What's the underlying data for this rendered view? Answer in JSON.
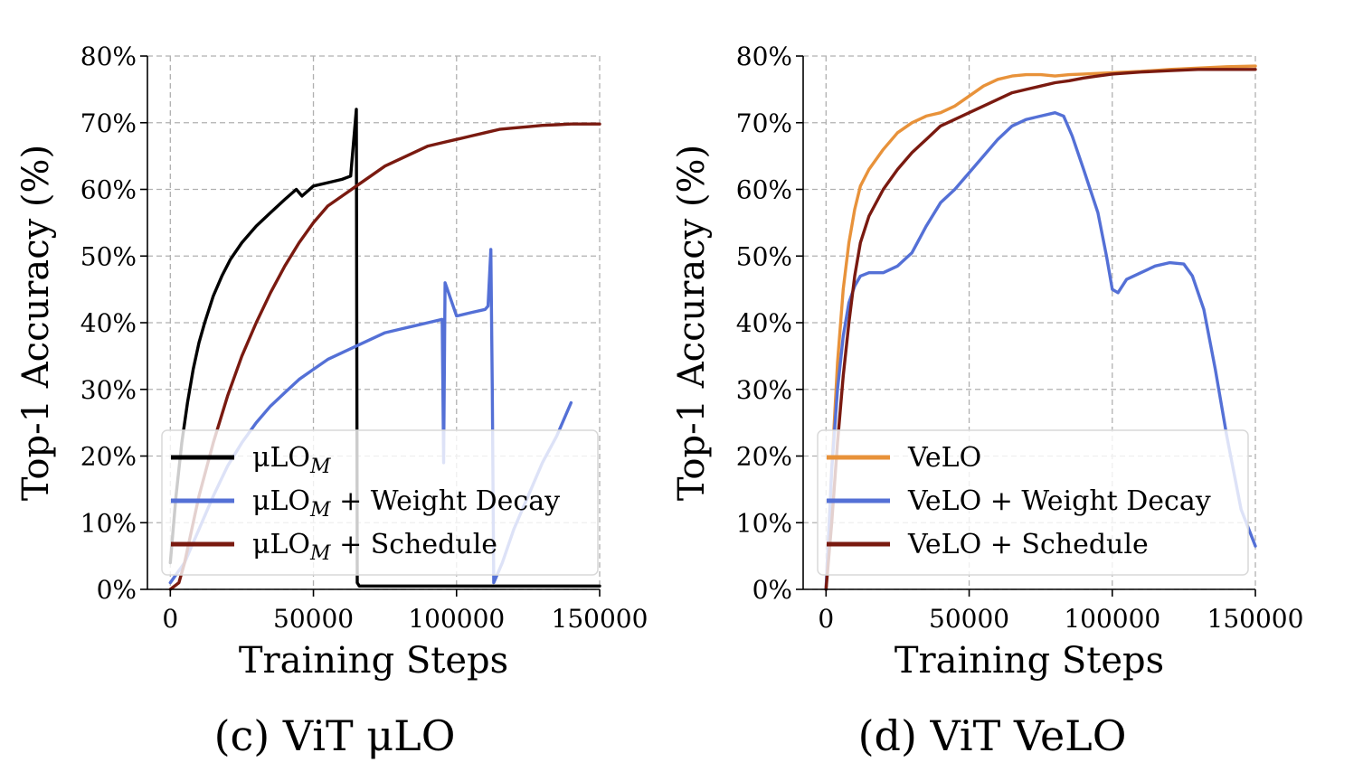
{
  "chart_data": [
    {
      "type": "line",
      "caption": "(c) ViT μLO",
      "xlabel": "Training Steps",
      "ylabel": "Top-1 Accuracy (%)",
      "xlim": [
        -8000,
        150000
      ],
      "ylim": [
        0,
        80
      ],
      "xticks": [
        0,
        50000,
        100000,
        150000
      ],
      "yticks": [
        0,
        10,
        20,
        30,
        40,
        50,
        60,
        70,
        80
      ],
      "ytick_suffix": "%",
      "grid": true,
      "legend_position": "lower-left",
      "series": [
        {
          "name": "μLO_M",
          "color": "#000000",
          "x": [
            0,
            2000,
            4000,
            6000,
            8000,
            10000,
            12000,
            15000,
            18000,
            21000,
            25000,
            30000,
            35000,
            40000,
            44000,
            46000,
            50000,
            55000,
            60000,
            63000,
            65000,
            65300,
            66000,
            70000,
            80000,
            100000,
            120000,
            150000
          ],
          "y": [
            4,
            14,
            22,
            28,
            33,
            37,
            40,
            44,
            47,
            49.5,
            52,
            54.5,
            56.5,
            58.5,
            60,
            59,
            60.5,
            61,
            61.5,
            62,
            72,
            1,
            0.5,
            0.5,
            0.5,
            0.5,
            0.5,
            0.5
          ]
        },
        {
          "name": "μLO_M + Weight Decay",
          "color": "#5470d6",
          "x": [
            0,
            5000,
            10000,
            15000,
            20000,
            25000,
            30000,
            35000,
            40000,
            45000,
            50000,
            55000,
            60000,
            65000,
            70000,
            75000,
            80000,
            85000,
            90000,
            95000,
            95500,
            96000,
            100000,
            105000,
            110000,
            111000,
            112000,
            112500,
            113000,
            116000,
            120000,
            125000,
            130000,
            135000,
            140000
          ],
          "y": [
            1,
            4,
            9,
            14,
            18.5,
            22,
            25,
            27.5,
            29.5,
            31.5,
            33,
            34.5,
            35.5,
            36.5,
            37.5,
            38.5,
            39,
            39.5,
            40,
            40.5,
            19,
            46,
            41,
            41.5,
            42,
            42.5,
            51,
            30,
            1,
            4,
            9,
            14,
            19,
            23,
            28
          ]
        },
        {
          "name": "μLO_M + Schedule",
          "color": "#7a1a10",
          "x": [
            0,
            3000,
            5000,
            8000,
            10000,
            15000,
            20000,
            25000,
            30000,
            35000,
            40000,
            45000,
            50000,
            55000,
            60000,
            65000,
            70000,
            75000,
            80000,
            85000,
            90000,
            95000,
            100000,
            105000,
            110000,
            115000,
            120000,
            125000,
            130000,
            135000,
            140000,
            145000,
            150000
          ],
          "y": [
            0,
            1,
            4,
            10,
            14,
            22,
            29,
            35,
            40,
            44.5,
            48.5,
            52,
            55,
            57.5,
            59,
            60.5,
            62,
            63.5,
            64.5,
            65.5,
            66.5,
            67,
            67.5,
            68,
            68.5,
            69,
            69.2,
            69.4,
            69.6,
            69.7,
            69.8,
            69.8,
            69.8
          ]
        }
      ]
    },
    {
      "type": "line",
      "caption": "(d) ViT VeLO",
      "xlabel": "Training Steps",
      "ylabel": "Top-1 Accuracy (%)",
      "xlim": [
        -8000,
        150000
      ],
      "ylim": [
        0,
        80
      ],
      "xticks": [
        0,
        50000,
        100000,
        150000
      ],
      "yticks": [
        0,
        10,
        20,
        30,
        40,
        50,
        60,
        70,
        80
      ],
      "ytick_suffix": "%",
      "grid": true,
      "legend_position": "lower-left",
      "series": [
        {
          "name": "VeLO",
          "color": "#e8923a",
          "x": [
            0,
            2000,
            4000,
            6000,
            8000,
            10000,
            12000,
            15000,
            20000,
            25000,
            30000,
            35000,
            40000,
            45000,
            50000,
            55000,
            60000,
            65000,
            70000,
            75000,
            80000,
            85000,
            90000,
            95000,
            100000,
            110000,
            120000,
            130000,
            140000,
            150000
          ],
          "y": [
            0,
            18,
            34,
            45,
            52,
            57,
            60.5,
            63,
            66,
            68.5,
            70,
            71,
            71.5,
            72.5,
            74,
            75.5,
            76.5,
            77,
            77.2,
            77.2,
            77,
            77.2,
            77.3,
            77.4,
            77.5,
            77.7,
            78,
            78.2,
            78.4,
            78.5
          ]
        },
        {
          "name": "VeLO + Weight Decay",
          "color": "#5470d6",
          "x": [
            0,
            2000,
            4000,
            6000,
            8000,
            10000,
            12000,
            15000,
            20000,
            25000,
            30000,
            35000,
            40000,
            45000,
            50000,
            55000,
            60000,
            65000,
            70000,
            75000,
            80000,
            83000,
            86000,
            90000,
            95000,
            98000,
            100000,
            102000,
            105000,
            110000,
            115000,
            120000,
            125000,
            128000,
            132000,
            136000,
            140000,
            145000,
            150000
          ],
          "y": [
            0,
            18,
            30,
            38,
            43,
            45.5,
            47,
            47.5,
            47.5,
            48.5,
            50.5,
            54.5,
            58,
            60,
            62.5,
            65,
            67.5,
            69.5,
            70.5,
            71,
            71.5,
            71,
            68,
            63,
            56.5,
            50,
            45,
            44.5,
            46.5,
            47.5,
            48.5,
            49,
            48.8,
            47,
            42,
            33,
            23,
            12,
            6.5
          ]
        },
        {
          "name": "VeLO + Schedule",
          "color": "#7a1a10",
          "x": [
            0,
            2000,
            4000,
            6000,
            8000,
            10000,
            12000,
            15000,
            20000,
            25000,
            30000,
            35000,
            40000,
            45000,
            50000,
            55000,
            60000,
            65000,
            70000,
            75000,
            80000,
            85000,
            90000,
            95000,
            100000,
            110000,
            120000,
            130000,
            140000,
            150000
          ],
          "y": [
            0,
            10,
            22,
            32,
            40,
            47,
            52,
            56,
            60,
            63,
            65.5,
            67.5,
            69.5,
            70.5,
            71.5,
            72.5,
            73.5,
            74.5,
            75,
            75.5,
            76,
            76.3,
            76.7,
            77,
            77.3,
            77.6,
            77.8,
            78,
            78,
            78
          ]
        }
      ]
    }
  ]
}
